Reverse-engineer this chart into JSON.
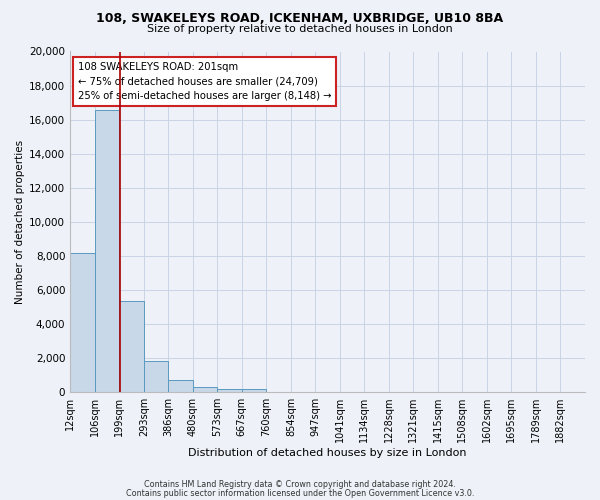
{
  "title1": "108, SWAKELEYS ROAD, ICKENHAM, UXBRIDGE, UB10 8BA",
  "title2": "Size of property relative to detached houses in London",
  "xlabel": "Distribution of detached houses by size in London",
  "ylabel": "Number of detached properties",
  "bin_labels": [
    "12sqm",
    "106sqm",
    "199sqm",
    "293sqm",
    "386sqm",
    "480sqm",
    "573sqm",
    "667sqm",
    "760sqm",
    "854sqm",
    "947sqm",
    "1041sqm",
    "1134sqm",
    "1228sqm",
    "1321sqm",
    "1415sqm",
    "1508sqm",
    "1602sqm",
    "1695sqm",
    "1789sqm",
    "1882sqm"
  ],
  "bin_edges": [
    12,
    106,
    199,
    293,
    386,
    480,
    573,
    667,
    760,
    854,
    947,
    1041,
    1134,
    1228,
    1321,
    1415,
    1508,
    1602,
    1695,
    1789,
    1882
  ],
  "bar_heights": [
    8150,
    16550,
    5300,
    1800,
    700,
    280,
    175,
    130,
    0,
    0,
    0,
    0,
    0,
    0,
    0,
    0,
    0,
    0,
    0,
    0
  ],
  "bar_color": "#c8d8e8",
  "bar_edge_color": "#5a9abf",
  "grid_color": "#c8d4e4",
  "vline_x": 201,
  "vline_color": "#aa0000",
  "annotation_text": "108 SWAKELEYS ROAD: 201sqm\n← 75% of detached houses are smaller (24,709)\n25% of semi-detached houses are larger (8,148) →",
  "annotation_box_color": "#ffffff",
  "annotation_box_edge": "#cc2222",
  "ylim": [
    0,
    20000
  ],
  "yticks": [
    0,
    2000,
    4000,
    6000,
    8000,
    10000,
    12000,
    14000,
    16000,
    18000,
    20000
  ],
  "footer1": "Contains HM Land Registry data © Crown copyright and database right 2024.",
  "footer2": "Contains public sector information licensed under the Open Government Licence v3.0.",
  "background_color": "#eef2f8",
  "title1_fontsize": 9,
  "title2_fontsize": 8
}
